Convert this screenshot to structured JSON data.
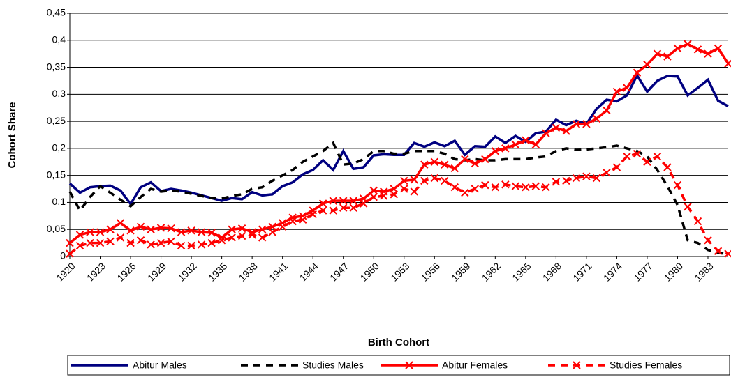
{
  "chart_data": {
    "type": "line",
    "y_label": "Cohort Share",
    "x_label": "Birth Cohort",
    "categories": [
      "1920",
      null,
      null,
      "1923",
      null,
      null,
      "1926",
      null,
      null,
      "1929",
      null,
      null,
      "1932",
      null,
      null,
      "1935",
      null,
      null,
      "1938",
      null,
      null,
      "1941",
      null,
      null,
      "1944",
      null,
      null,
      "1947",
      null,
      null,
      "1950",
      null,
      null,
      "1953",
      null,
      null,
      "1956",
      null,
      null,
      "1959",
      null,
      null,
      "1962",
      null,
      null,
      "1965",
      null,
      null,
      "1968",
      null,
      null,
      "1971",
      null,
      null,
      "1974",
      null,
      null,
      "1977",
      null,
      null,
      "1980",
      null,
      null,
      "1983",
      null,
      null
    ],
    "ylim": [
      0,
      0.45
    ],
    "yticks": [
      0,
      {
        "value": 0.05,
        "label": "0,05"
      },
      {
        "value": 0.1,
        "label": "0,1"
      },
      {
        "value": 0.15,
        "label": "0,15"
      },
      {
        "value": 0.2,
        "label": "0,2"
      },
      {
        "value": 0.25,
        "label": "0,25"
      },
      {
        "value": 0.3,
        "label": "0,3"
      },
      {
        "value": 0.35,
        "label": "0,35"
      },
      {
        "value": 0.4,
        "label": "0,4"
      },
      {
        "value": 0.45,
        "label": "0,45"
      }
    ],
    "grid": true,
    "legend": "bottom",
    "series": [
      {
        "name": "Abitur Males",
        "color": "#000080",
        "dash": false,
        "marker": "none",
        "values": [
          0.135,
          0.118,
          0.128,
          0.13,
          0.131,
          0.122,
          0.097,
          0.128,
          0.137,
          0.121,
          0.125,
          0.122,
          0.118,
          0.113,
          0.108,
          0.103,
          0.108,
          0.106,
          0.119,
          0.113,
          0.115,
          0.13,
          0.137,
          0.152,
          0.16,
          0.178,
          0.16,
          0.195,
          0.162,
          0.165,
          0.187,
          0.189,
          0.188,
          0.188,
          0.21,
          0.203,
          0.211,
          0.204,
          0.214,
          0.188,
          0.204,
          0.203,
          0.222,
          0.21,
          0.223,
          0.212,
          0.228,
          0.231,
          0.253,
          0.243,
          0.251,
          0.245,
          0.273,
          0.29,
          0.287,
          0.298,
          0.335,
          0.305,
          0.325,
          0.334,
          0.333,
          0.298,
          0.312,
          0.327,
          0.288,
          0.278
        ]
      },
      {
        "name": "Studies Males",
        "color": "#000000",
        "dash": true,
        "marker": "none",
        "values": [
          0.12,
          0.085,
          0.11,
          0.13,
          0.118,
          0.105,
          0.093,
          0.11,
          0.125,
          0.12,
          0.122,
          0.12,
          0.116,
          0.112,
          0.108,
          0.107,
          0.112,
          0.115,
          0.125,
          0.128,
          0.14,
          0.15,
          0.16,
          0.175,
          0.185,
          0.195,
          0.21,
          0.17,
          0.172,
          0.18,
          0.195,
          0.195,
          0.19,
          0.19,
          0.195,
          0.195,
          0.195,
          0.19,
          0.18,
          0.178,
          0.18,
          0.178,
          0.178,
          0.18,
          0.18,
          0.18,
          0.183,
          0.185,
          0.195,
          0.2,
          0.197,
          0.198,
          0.2,
          0.202,
          0.205,
          0.2,
          0.195,
          0.185,
          0.16,
          0.13,
          0.095,
          0.03,
          0.025,
          0.012,
          0.007,
          0.004
        ]
      },
      {
        "name": "Abitur Females",
        "color": "#ff0000",
        "dash": false,
        "marker": "x",
        "values": [
          0.025,
          0.04,
          0.045,
          0.045,
          0.05,
          0.062,
          0.048,
          0.055,
          0.05,
          0.053,
          0.052,
          0.045,
          0.048,
          0.045,
          0.044,
          0.035,
          0.05,
          0.052,
          0.045,
          0.05,
          0.055,
          0.062,
          0.072,
          0.075,
          0.085,
          0.098,
          0.103,
          0.103,
          0.103,
          0.107,
          0.122,
          0.12,
          0.125,
          0.14,
          0.142,
          0.17,
          0.175,
          0.17,
          0.163,
          0.18,
          0.172,
          0.18,
          0.195,
          0.2,
          0.207,
          0.215,
          0.207,
          0.228,
          0.238,
          0.232,
          0.245,
          0.245,
          0.255,
          0.27,
          0.305,
          0.312,
          0.34,
          0.355,
          0.375,
          0.37,
          0.385,
          0.393,
          0.383,
          0.375,
          0.385,
          0.357
        ]
      },
      {
        "name": "Studies Females",
        "color": "#ff0000",
        "dash": true,
        "marker": "x",
        "values": [
          0.005,
          0.02,
          0.025,
          0.025,
          0.028,
          0.035,
          0.025,
          0.03,
          0.022,
          0.025,
          0.028,
          0.02,
          0.02,
          0.022,
          0.025,
          0.03,
          0.035,
          0.038,
          0.04,
          0.035,
          0.045,
          0.055,
          0.065,
          0.068,
          0.078,
          0.085,
          0.085,
          0.09,
          0.09,
          0.098,
          0.11,
          0.112,
          0.115,
          0.125,
          0.12,
          0.14,
          0.145,
          0.14,
          0.128,
          0.118,
          0.125,
          0.132,
          0.128,
          0.133,
          0.13,
          0.128,
          0.13,
          0.128,
          0.138,
          0.14,
          0.145,
          0.148,
          0.145,
          0.155,
          0.165,
          0.185,
          0.19,
          0.175,
          0.185,
          0.165,
          0.132,
          0.092,
          0.065,
          0.03,
          0.01,
          0.005
        ]
      }
    ]
  }
}
